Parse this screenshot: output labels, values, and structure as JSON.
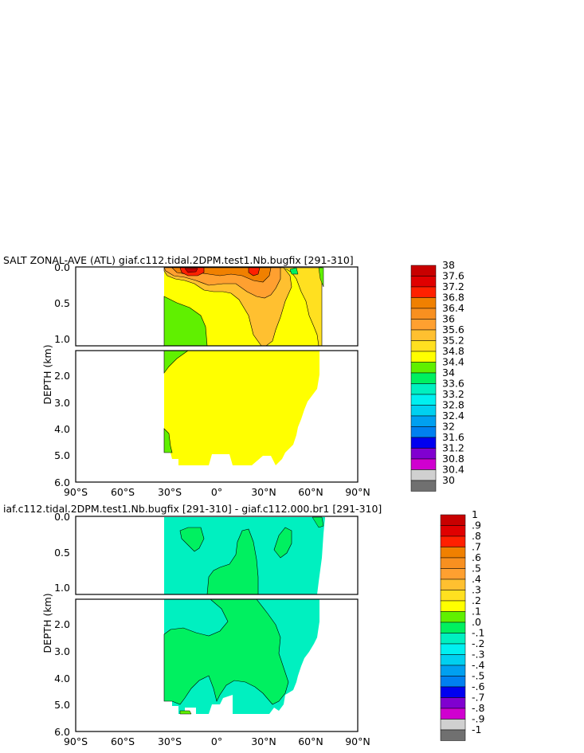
{
  "chart_data": [
    {
      "type": "heatmap",
      "title": "SALT ZONAL-AVE (ATL) giaf.c112.tidal.2DPM.test1.Nb.bugfix [291-310]",
      "ylabel": "DEPTH (km)",
      "x_ticks": [
        "90°S",
        "60°S",
        "30°S",
        "0°",
        "30°N",
        "60°N",
        "90°N"
      ],
      "y_ticks_top": [
        "0.0",
        "0.5",
        "1.0"
      ],
      "y_ticks_bottom": [
        "2.0",
        "3.0",
        "4.0",
        "5.0",
        "6.0"
      ],
      "xlim": [
        -90,
        90
      ],
      "ylim_km": [
        6.0,
        0.0
      ],
      "colorbar": {
        "labels": [
          "38",
          "37.6",
          "37.2",
          "36.8",
          "36.4",
          "36",
          "35.6",
          "35.2",
          "34.8",
          "34.4",
          "34",
          "33.6",
          "33.2",
          "32.8",
          "32.4",
          "32",
          "31.6",
          "31.2",
          "30.8",
          "30.4",
          "30"
        ],
        "colors": [
          "#c80000",
          "#e00000",
          "#ff2000",
          "#f08000",
          "#f89020",
          "#ffa030",
          "#ffc030",
          "#ffe020",
          "#ffff00",
          "#60f000",
          "#00f060",
          "#00f0c0",
          "#00f0f0",
          "#00d0f0",
          "#00a0f0",
          "#0080f0",
          "#0000f0",
          "#8000d0",
          "#d000d0",
          "#d0d0d0",
          "#707070"
        ]
      }
    },
    {
      "type": "heatmap",
      "title": "iaf.c112.tidal.2DPM.test1.Nb.bugfix [291-310] - giaf.c112.000.br1 [291-310]",
      "ylabel": "DEPTH (km)",
      "x_ticks": [
        "90°S",
        "60°S",
        "30°S",
        "0°",
        "30°N",
        "60°N",
        "90°N"
      ],
      "y_ticks_top": [
        "0.0",
        "0.5",
        "1.0"
      ],
      "y_ticks_bottom": [
        "2.0",
        "3.0",
        "4.0",
        "5.0",
        "6.0"
      ],
      "xlim": [
        -90,
        90
      ],
      "ylim_km": [
        6.0,
        0.0
      ],
      "colorbar": {
        "labels": [
          "1",
          ".9",
          ".8",
          ".7",
          ".6",
          ".5",
          ".4",
          ".3",
          ".2",
          ".1",
          ".0",
          "-.1",
          "-.2",
          "-.3",
          "-.4",
          "-.5",
          "-.6",
          "-.7",
          "-.8",
          "-.9",
          "-1"
        ],
        "colors": [
          "#c80000",
          "#e00000",
          "#ff2000",
          "#f08000",
          "#f89020",
          "#ffa030",
          "#ffc030",
          "#ffe020",
          "#ffff00",
          "#60f000",
          "#00f060",
          "#00f0c0",
          "#00f0f0",
          "#00d0f0",
          "#00a0f0",
          "#0080f0",
          "#0000f0",
          "#8000d0",
          "#d000d0",
          "#d0d0d0",
          "#707070"
        ]
      }
    }
  ]
}
